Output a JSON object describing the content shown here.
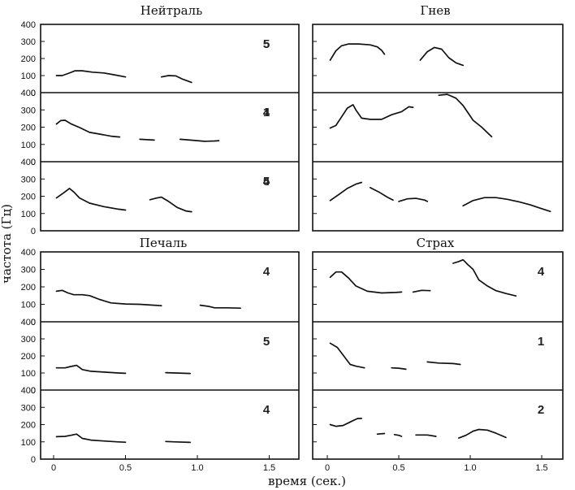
{
  "chart_data": {
    "type": "line",
    "xlabel": "время (сек.)",
    "ylabel": "частота (Гц)",
    "xticks": [
      "0",
      "0.5",
      "1.0",
      "1.5"
    ],
    "yticks": [
      "0",
      "100",
      "200",
      "300",
      "400"
    ],
    "xlim": [
      0,
      1.55
    ],
    "ylim": [
      0,
      400
    ],
    "emotions": [
      {
        "title": "Нейтраль",
        "rows": [
          {
            "label": "5",
            "segments": [
              [
                [
                  0.02,
                  100
                ],
                [
                  0.06,
                  100
                ],
                [
                  0.1,
                  112
                ],
                [
                  0.15,
                  128
                ],
                [
                  0.2,
                  128
                ],
                [
                  0.27,
                  120
                ],
                [
                  0.35,
                  115
                ],
                [
                  0.42,
                  105
                ],
                [
                  0.5,
                  92
                ]
              ],
              [
                [
                  0.75,
                  92
                ],
                [
                  0.8,
                  100
                ],
                [
                  0.85,
                  98
                ],
                [
                  0.9,
                  78
                ],
                [
                  0.96,
                  60
                ]
              ]
            ]
          },
          {
            "label": "1",
            "segments": [
              [
                [
                  0.02,
                  218
                ],
                [
                  0.05,
                  238
                ],
                [
                  0.08,
                  240
                ],
                [
                  0.12,
                  220
                ],
                [
                  0.18,
                  198
                ],
                [
                  0.25,
                  170
                ],
                [
                  0.32,
                  160
                ],
                [
                  0.4,
                  148
                ],
                [
                  0.46,
                  143
                ]
              ],
              [
                [
                  0.6,
                  130
                ],
                [
                  0.7,
                  125
                ]
              ],
              [
                [
                  0.88,
                  130
                ],
                [
                  0.95,
                  125
                ],
                [
                  1.05,
                  118
                ],
                [
                  1.12,
                  120
                ],
                [
                  1.15,
                  122
                ]
              ]
            ]
          },
          {
            "label": "4",
            "segments": [
              [
                [
                  0.02,
                  190
                ],
                [
                  0.07,
                  220
                ],
                [
                  0.11,
                  245
                ],
                [
                  0.14,
                  225
                ],
                [
                  0.18,
                  190
                ],
                [
                  0.25,
                  160
                ],
                [
                  0.35,
                  140
                ],
                [
                  0.45,
                  125
                ],
                [
                  0.5,
                  120
                ]
              ],
              [
                [
                  0.67,
                  180
                ],
                [
                  0.72,
                  190
                ],
                [
                  0.75,
                  195
                ],
                [
                  0.8,
                  170
                ],
                [
                  0.86,
                  135
                ],
                [
                  0.92,
                  115
                ],
                [
                  0.96,
                  110
                ]
              ]
            ]
          }
        ]
      },
      {
        "title": "Гнев",
        "rows": [
          {
            "label": "5",
            "segments": [
              [
                [
                  0.02,
                  190
                ],
                [
                  0.06,
                  245
                ],
                [
                  0.1,
                  275
                ],
                [
                  0.15,
                  285
                ],
                [
                  0.22,
                  285
                ],
                [
                  0.3,
                  280
                ],
                [
                  0.35,
                  268
                ],
                [
                  0.38,
                  248
                ],
                [
                  0.4,
                  225
                ]
              ],
              [
                [
                  0.65,
                  190
                ],
                [
                  0.7,
                  240
                ],
                [
                  0.75,
                  265
                ],
                [
                  0.8,
                  255
                ],
                [
                  0.85,
                  205
                ],
                [
                  0.9,
                  175
                ],
                [
                  0.95,
                  160
                ]
              ]
            ]
          },
          {
            "label": "4",
            "segments": [
              [
                [
                  0.02,
                  195
                ],
                [
                  0.06,
                  210
                ],
                [
                  0.1,
                  260
                ],
                [
                  0.14,
                  310
                ],
                [
                  0.18,
                  330
                ],
                [
                  0.2,
                  300
                ],
                [
                  0.24,
                  252
                ],
                [
                  0.3,
                  245
                ],
                [
                  0.38,
                  245
                ],
                [
                  0.45,
                  272
                ],
                [
                  0.52,
                  290
                ],
                [
                  0.57,
                  318
                ],
                [
                  0.6,
                  315
                ]
              ],
              [
                [
                  0.78,
                  385
                ],
                [
                  0.84,
                  390
                ],
                [
                  0.9,
                  368
                ],
                [
                  0.95,
                  325
                ],
                [
                  1.02,
                  240
                ],
                [
                  1.08,
                  200
                ],
                [
                  1.15,
                  145
                ]
              ]
            ]
          },
          {
            "label": "5",
            "segments": [
              [
                [
                  0.02,
                  175
                ],
                [
                  0.08,
                  210
                ],
                [
                  0.14,
                  245
                ],
                [
                  0.2,
                  270
                ],
                [
                  0.24,
                  280
                ]
              ],
              [
                [
                  0.3,
                  250
                ],
                [
                  0.36,
                  225
                ],
                [
                  0.42,
                  195
                ],
                [
                  0.46,
                  178
                ]
              ],
              [
                [
                  0.5,
                  170
                ],
                [
                  0.56,
                  185
                ],
                [
                  0.62,
                  188
                ],
                [
                  0.68,
                  178
                ],
                [
                  0.7,
                  170
                ]
              ],
              [
                [
                  0.95,
                  145
                ],
                [
                  1.02,
                  175
                ],
                [
                  1.1,
                  192
                ],
                [
                  1.18,
                  192
                ],
                [
                  1.26,
                  182
                ],
                [
                  1.34,
                  168
                ],
                [
                  1.42,
                  150
                ],
                [
                  1.5,
                  128
                ],
                [
                  1.56,
                  112
                ]
              ]
            ]
          }
        ]
      },
      {
        "title": "Печаль",
        "rows": [
          {
            "label": "4",
            "segments": [
              [
                [
                  0.02,
                  175
                ],
                [
                  0.06,
                  180
                ],
                [
                  0.1,
                  165
                ],
                [
                  0.14,
                  155
                ],
                [
                  0.2,
                  155
                ],
                [
                  0.25,
                  150
                ],
                [
                  0.32,
                  128
                ],
                [
                  0.4,
                  108
                ],
                [
                  0.5,
                  102
                ],
                [
                  0.6,
                  100
                ],
                [
                  0.7,
                  95
                ],
                [
                  0.75,
                  92
                ]
              ],
              [
                [
                  1.02,
                  95
                ],
                [
                  1.08,
                  88
                ],
                [
                  1.12,
                  80
                ],
                [
                  1.2,
                  80
                ],
                [
                  1.3,
                  78
                ]
              ]
            ]
          },
          {
            "label": "5",
            "segments": [
              [
                [
                  0.02,
                  130
                ],
                [
                  0.08,
                  130
                ],
                [
                  0.12,
                  138
                ],
                [
                  0.16,
                  145
                ],
                [
                  0.2,
                  120
                ],
                [
                  0.26,
                  110
                ],
                [
                  0.35,
                  105
                ],
                [
                  0.45,
                  100
                ],
                [
                  0.5,
                  98
                ]
              ],
              [
                [
                  0.78,
                  102
                ],
                [
                  0.85,
                  100
                ],
                [
                  0.95,
                  97
                ]
              ]
            ]
          },
          {
            "label": "4",
            "segments": [
              [
                [
                  0.02,
                  130
                ],
                [
                  0.08,
                  132
                ],
                [
                  0.12,
                  138
                ],
                [
                  0.16,
                  145
                ],
                [
                  0.2,
                  120
                ],
                [
                  0.26,
                  110
                ],
                [
                  0.35,
                  105
                ],
                [
                  0.45,
                  100
                ],
                [
                  0.5,
                  98
                ]
              ],
              [
                [
                  0.78,
                  102
                ],
                [
                  0.85,
                  100
                ],
                [
                  0.95,
                  97
                ]
              ]
            ]
          }
        ]
      },
      {
        "title": "Страх",
        "rows": [
          {
            "label": "4",
            "segments": [
              [
                [
                  0.02,
                  255
                ],
                [
                  0.06,
                  285
                ],
                [
                  0.1,
                  285
                ],
                [
                  0.15,
                  250
                ],
                [
                  0.2,
                  205
                ],
                [
                  0.28,
                  175
                ],
                [
                  0.38,
                  165
                ],
                [
                  0.48,
                  168
                ],
                [
                  0.52,
                  170
                ]
              ],
              [
                [
                  0.6,
                  170
                ],
                [
                  0.66,
                  180
                ],
                [
                  0.72,
                  178
                ]
              ],
              [
                [
                  0.88,
                  335
                ],
                [
                  0.92,
                  345
                ],
                [
                  0.95,
                  355
                ],
                [
                  0.98,
                  330
                ],
                [
                  1.02,
                  300
                ],
                [
                  1.06,
                  240
                ],
                [
                  1.12,
                  205
                ],
                [
                  1.18,
                  178
                ],
                [
                  1.25,
                  162
                ],
                [
                  1.32,
                  148
                ]
              ]
            ]
          },
          {
            "label": "1",
            "segments": [
              [
                [
                  0.02,
                  275
                ],
                [
                  0.07,
                  250
                ],
                [
                  0.12,
                  195
                ],
                [
                  0.16,
                  150
                ],
                [
                  0.2,
                  140
                ],
                [
                  0.26,
                  130
                ]
              ],
              [
                [
                  0.45,
                  130
                ],
                [
                  0.5,
                  128
                ],
                [
                  0.55,
                  122
                ]
              ],
              [
                [
                  0.7,
                  165
                ],
                [
                  0.78,
                  158
                ],
                [
                  0.88,
                  155
                ],
                [
                  0.93,
                  150
                ]
              ]
            ]
          },
          {
            "label": "2",
            "segments": [
              [
                [
                  0.02,
                  200
                ],
                [
                  0.06,
                  190
                ],
                [
                  0.11,
                  195
                ],
                [
                  0.16,
                  215
                ],
                [
                  0.21,
                  235
                ],
                [
                  0.24,
                  236
                ]
              ],
              [
                [
                  0.35,
                  145
                ],
                [
                  0.4,
                  148
                ]
              ],
              [
                [
                  0.47,
                  142
                ],
                [
                  0.5,
                  138
                ],
                [
                  0.52,
                  132
                ]
              ],
              [
                [
                  0.62,
                  140
                ],
                [
                  0.7,
                  140
                ],
                [
                  0.76,
                  132
                ]
              ],
              [
                [
                  0.92,
                  122
                ],
                [
                  0.97,
                  138
                ],
                [
                  1.02,
                  162
                ],
                [
                  1.06,
                  172
                ],
                [
                  1.12,
                  168
                ],
                [
                  1.18,
                  150
                ],
                [
                  1.25,
                  125
                ]
              ]
            ]
          }
        ]
      }
    ]
  }
}
